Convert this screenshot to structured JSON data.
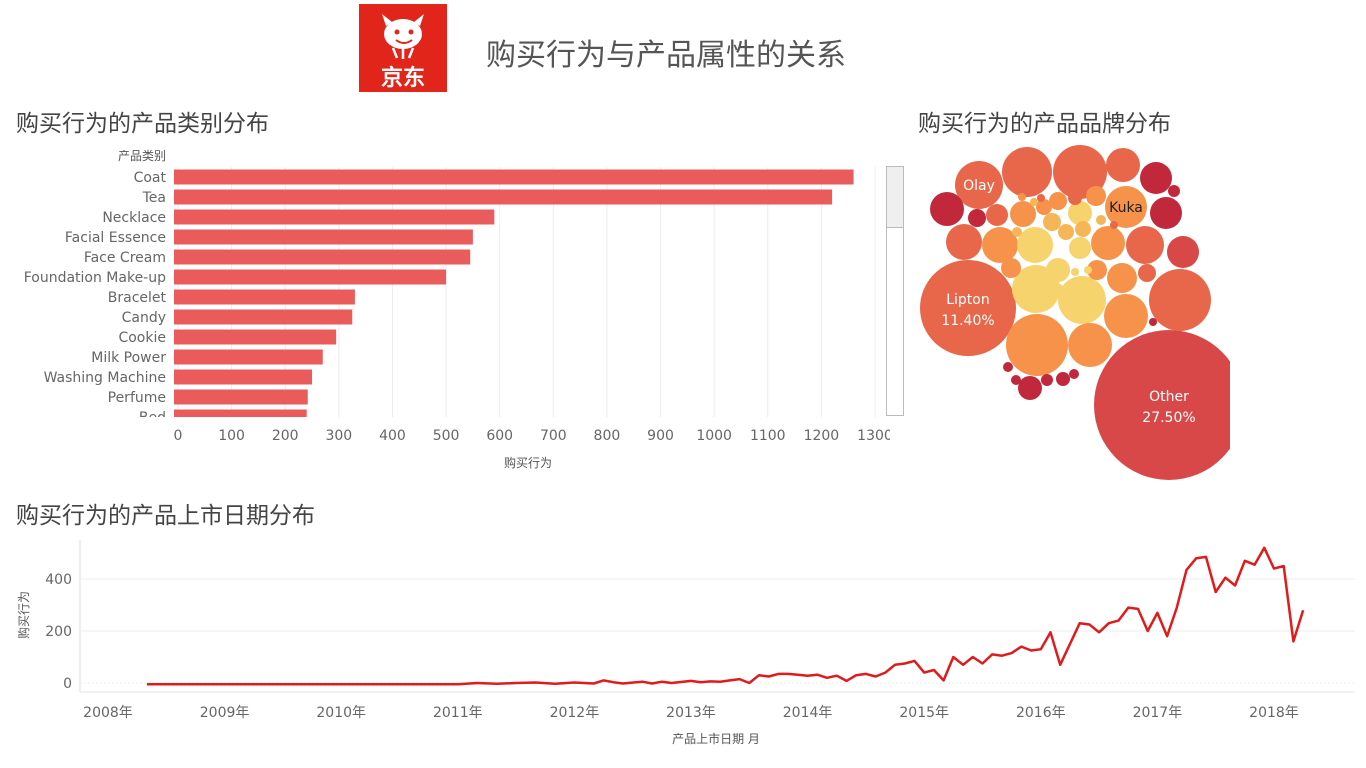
{
  "header": {
    "title": "购买行为与产品属性的关系",
    "logo_text": "京东",
    "brand_color": "#e1251b"
  },
  "sections": {
    "category_title": "购买行为的产品类别分布",
    "brand_title": "购买行为的产品品牌分布",
    "date_title": "购买行为的产品上市日期分布"
  },
  "colors": {
    "bar": "#ea5c5c",
    "line": "#e01b1b",
    "grid": "#ececec",
    "bubble_palette": [
      "#c1283b",
      "#d94848",
      "#e8674a",
      "#f7924a",
      "#f5b657",
      "#f7d36e"
    ]
  },
  "chart_data": [
    {
      "id": "category",
      "type": "bar",
      "orientation": "horizontal",
      "header_label": "产品类别",
      "categories": [
        "Coat",
        "Tea",
        "Necklace",
        "Facial Essence",
        "Face Cream",
        "Foundation Make-up",
        "Bracelet",
        "Candy",
        "Cookie",
        "Milk Power",
        "Washing Machine",
        "Perfume",
        "Bed"
      ],
      "values": [
        1260,
        1220,
        590,
        550,
        545,
        500,
        330,
        325,
        295,
        270,
        250,
        242,
        240
      ],
      "xlabel": "购买行为",
      "xlim": [
        0,
        1300
      ],
      "xticks": [
        0,
        100,
        200,
        300,
        400,
        500,
        600,
        700,
        800,
        900,
        1000,
        1100,
        1200,
        1300
      ],
      "grid": true
    },
    {
      "id": "brand",
      "type": "bubble",
      "labeled": [
        {
          "label": "Other",
          "pct": "27.50%"
        },
        {
          "label": "Lipton",
          "pct": "11.40%"
        },
        {
          "label": "Olay",
          "pct": ""
        },
        {
          "label": "Kuka",
          "pct": ""
        }
      ]
    },
    {
      "id": "launch_date",
      "type": "line",
      "xlabel": "产品上市日期 月",
      "ylabel": "购买行为",
      "xticks": [
        "2008年",
        "2009年",
        "2010年",
        "2011年",
        "2012年",
        "2013年",
        "2014年",
        "2015年",
        "2016年",
        "2017年",
        "2018年"
      ],
      "yticks": [
        0,
        200,
        400
      ],
      "ylim": [
        -30,
        540
      ],
      "x": [
        "2008-05",
        "2008-08",
        "2008-11",
        "2009-02",
        "2009-05",
        "2009-08",
        "2009-11",
        "2010-02",
        "2010-05",
        "2010-08",
        "2010-11",
        "2011-01",
        "2011-03",
        "2011-05",
        "2011-07",
        "2011-09",
        "2011-11",
        "2012-01",
        "2012-03",
        "2012-04",
        "2012-05",
        "2012-06",
        "2012-08",
        "2012-09",
        "2012-10",
        "2012-11",
        "2013-01",
        "2013-02",
        "2013-03",
        "2013-04",
        "2013-05",
        "2013-06",
        "2013-07",
        "2013-08",
        "2013-09",
        "2013-10",
        "2013-11",
        "2013-12",
        "2014-01",
        "2014-02",
        "2014-03",
        "2014-04",
        "2014-05",
        "2014-06",
        "2014-07",
        "2014-08",
        "2014-09",
        "2014-10",
        "2014-11",
        "2014-12",
        "2015-01",
        "2015-02",
        "2015-03",
        "2015-04",
        "2015-05",
        "2015-06",
        "2015-07",
        "2015-08",
        "2015-09",
        "2015-10",
        "2015-11",
        "2015-12",
        "2016-01",
        "2016-02",
        "2016-03",
        "2016-05",
        "2016-06",
        "2016-07",
        "2016-08",
        "2016-09",
        "2016-10",
        "2016-11",
        "2016-12",
        "2017-01",
        "2017-02",
        "2017-03",
        "2017-04",
        "2017-05",
        "2017-06",
        "2017-07",
        "2017-08",
        "2017-09",
        "2017-10",
        "2017-11",
        "2017-12",
        "2018-01",
        "2018-02",
        "2018-03",
        "2018-04"
      ],
      "y": [
        -5,
        -5,
        -5,
        -5,
        -5,
        -5,
        -5,
        -5,
        -5,
        -5,
        -5,
        -5,
        0,
        -3,
        0,
        2,
        -3,
        2,
        -2,
        10,
        3,
        -2,
        5,
        -2,
        5,
        0,
        8,
        3,
        6,
        5,
        10,
        15,
        0,
        30,
        25,
        35,
        35,
        32,
        28,
        32,
        20,
        28,
        8,
        30,
        35,
        25,
        40,
        70,
        75,
        85,
        40,
        50,
        10,
        100,
        70,
        100,
        75,
        110,
        105,
        115,
        140,
        125,
        130,
        195,
        70,
        230,
        225,
        195,
        230,
        240,
        290,
        285,
        200,
        270,
        180,
        290,
        435,
        480,
        485,
        350,
        405,
        375,
        470,
        455,
        520,
        440,
        450,
        160,
        280
      ]
    }
  ]
}
